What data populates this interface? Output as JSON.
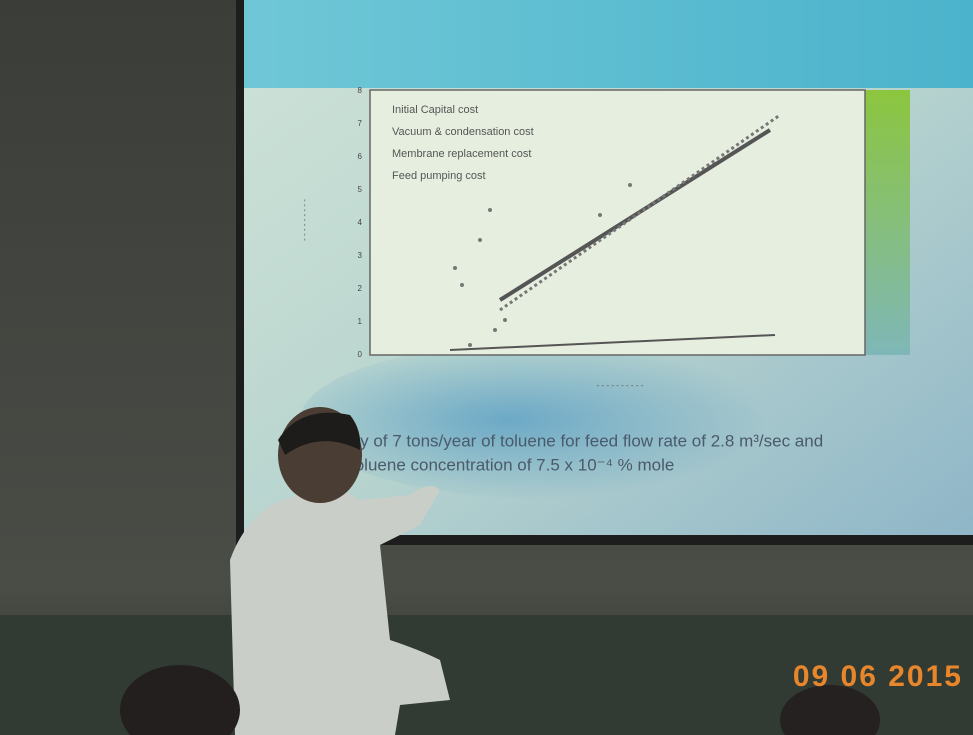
{
  "slide": {
    "legend": [
      "Initial Capital cost",
      "Vacuum & condensation cost",
      "Membrane replacement cost",
      "Feed pumping cost"
    ],
    "y_ticks": [
      "0",
      "1",
      "2",
      "3",
      "4",
      "5",
      "6",
      "7",
      "8"
    ],
    "caption": [
      "ery of 7 tons/year of toluene for feed flow rate of 2.8 m³/sec and",
      "toluene concentration of 7.5 x 10⁻⁴ % mole"
    ]
  },
  "timestamp": "09 06 2015"
}
